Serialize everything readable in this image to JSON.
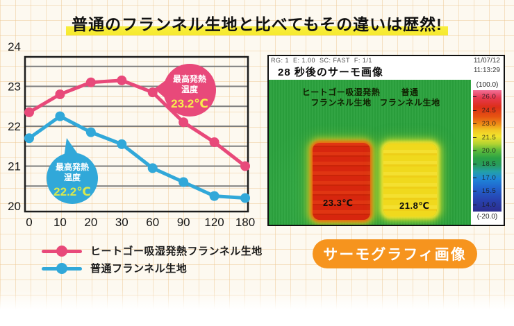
{
  "page": {
    "title": "普通のフランネル生地と比べてもその違いは歴然!",
    "bg_color": "#fdf9f0",
    "highlight_color": "#f8ee3e"
  },
  "chart_data": {
    "type": "line",
    "categories": [
      "0",
      "10",
      "20",
      "30",
      "60",
      "90",
      "120",
      "180"
    ],
    "series": [
      {
        "name": "ヒートゴー吸湿発熱フランネル生地",
        "color": "#e8497a",
        "values": [
          22.35,
          22.8,
          23.1,
          23.15,
          22.85,
          22.1,
          21.6,
          21.0
        ]
      },
      {
        "name": "普通フランネル生地",
        "color": "#31a8d9",
        "values": [
          21.7,
          22.25,
          21.85,
          21.55,
          20.95,
          20.6,
          20.25,
          20.2
        ]
      }
    ],
    "ylim": [
      20,
      24
    ],
    "ytick_step": 1,
    "gridline_step": 0.5,
    "grid": true,
    "legend_position": "bottom",
    "annotations": [
      {
        "series": "ヒートゴー吸湿発熱フランネル生地",
        "label_lines": [
          "最高発熱",
          "温度"
        ],
        "value_text": "23.2℃",
        "bubble_color": "#e8497a",
        "value_color": "#f7ec4d"
      },
      {
        "series": "普通フランネル生地",
        "label_lines": [
          "最高発熱",
          "温度"
        ],
        "value_text": "22.2℃",
        "bubble_color": "#31a8d9",
        "value_color": "#d9e94e"
      }
    ]
  },
  "thermal_panel": {
    "meta_line": "RG: 1  E: 1.00  SC: FAST  F: 1/1",
    "title": "28 秒後のサーモ画像",
    "date": "11/07/12",
    "time": "11:13:29",
    "scale_top_label": "(100.0)",
    "scale_bottom_label": "(-20.0)",
    "scale_ticks": [
      "26.0",
      "24.5",
      "23.0",
      "21.5",
      "20.0",
      "18.5",
      "17.0",
      "15.5",
      "14.0"
    ],
    "samples": [
      {
        "label_lines": [
          "ヒートゴー吸湿発熱",
          "フランネル生地"
        ],
        "temp": "23.3℃",
        "swatch_color": "red"
      },
      {
        "label_lines": [
          "普通",
          "フランネル生地"
        ],
        "temp": "21.8℃",
        "swatch_color": "yellow"
      }
    ]
  },
  "badge": {
    "label": "サーモグラフィ画像",
    "color": "#f6941e"
  }
}
